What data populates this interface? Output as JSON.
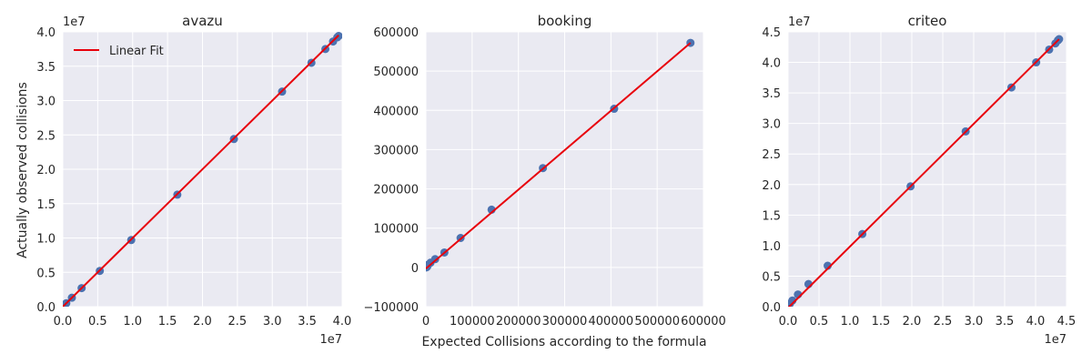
{
  "figure": {
    "xlabel": "Expected Collisions according to the formula",
    "ylabel": "Actually observed collisions",
    "legend_label": "Linear Fit"
  },
  "chart_data": [
    {
      "type": "scatter",
      "title": "avazu",
      "xlim": [
        0,
        40000000
      ],
      "ylim": [
        0,
        40000000
      ],
      "xticks": [
        0,
        5000000,
        10000000,
        15000000,
        20000000,
        25000000,
        30000000,
        35000000,
        40000000
      ],
      "xtick_labels": [
        "0.0",
        "0.5",
        "1.0",
        "1.5",
        "2.0",
        "2.5",
        "3.0",
        "3.5",
        "4.0"
      ],
      "yticks": [
        0,
        5000000,
        10000000,
        15000000,
        20000000,
        25000000,
        30000000,
        35000000,
        40000000
      ],
      "ytick_labels": [
        "0.0",
        "0.5",
        "1.0",
        "1.5",
        "2.0",
        "2.5",
        "3.0",
        "3.5",
        "4.0"
      ],
      "x_offset_label": "1e7",
      "y_offset_label": "1e7",
      "points_x": [
        200000,
        500000,
        1300000,
        2700000,
        5300000,
        9800000,
        16400000,
        24500000,
        31400000,
        35600000,
        37600000,
        38700000,
        39300000,
        39500000
      ],
      "points_y": [
        200000,
        500000,
        1300000,
        2700000,
        5200000,
        9700000,
        16300000,
        24400000,
        31300000,
        35500000,
        37500000,
        38600000,
        39200000,
        39400000
      ],
      "fit_x": [
        0,
        39500000
      ],
      "fit_y": [
        0,
        39500000
      ],
      "legend": "top-left",
      "grid": true
    },
    {
      "type": "scatter",
      "title": "booking",
      "xlim": [
        0,
        600000
      ],
      "ylim": [
        -100000,
        600000
      ],
      "xticks": [
        0,
        100000,
        200000,
        300000,
        400000,
        500000,
        600000
      ],
      "xtick_labels": [
        "0",
        "100000",
        "200000",
        "300000",
        "400000",
        "500000",
        "600000"
      ],
      "yticks": [
        -100000,
        0,
        100000,
        200000,
        300000,
        400000,
        500000,
        600000
      ],
      "ytick_labels": [
        "−100000",
        "0",
        "100000",
        "200000",
        "300000",
        "400000",
        "500000",
        "600000"
      ],
      "points_x": [
        1000,
        3000,
        5000,
        10000,
        20000,
        40000,
        75000,
        142000,
        253000,
        407000,
        572000
      ],
      "points_y": [
        0,
        2000,
        7000,
        12000,
        21000,
        38000,
        75000,
        147000,
        253000,
        404000,
        572000
      ],
      "fit_x": [
        0,
        572000
      ],
      "fit_y": [
        -3000,
        572000
      ],
      "grid": true
    },
    {
      "type": "scatter",
      "title": "criteo",
      "xlim": [
        0,
        45000000
      ],
      "ylim": [
        0,
        45000000
      ],
      "xticks": [
        0,
        5000000,
        10000000,
        15000000,
        20000000,
        25000000,
        30000000,
        35000000,
        40000000,
        45000000
      ],
      "xtick_labels": [
        "0.0",
        "0.5",
        "1.0",
        "1.5",
        "2.0",
        "2.5",
        "3.0",
        "3.5",
        "4.0",
        "4.5"
      ],
      "yticks": [
        0,
        5000000,
        10000000,
        15000000,
        20000000,
        25000000,
        30000000,
        35000000,
        40000000,
        45000000
      ],
      "ytick_labels": [
        "0.0",
        "0.5",
        "1.0",
        "1.5",
        "2.0",
        "2.5",
        "3.0",
        "3.5",
        "4.0",
        "4.5"
      ],
      "x_offset_label": "1e7",
      "y_offset_label": "1e7",
      "points_x": [
        100000,
        300000,
        700000,
        1600000,
        3300000,
        6400000,
        12000000,
        19800000,
        28700000,
        36100000,
        40100000,
        42200000,
        43200000,
        43600000,
        43800000
      ],
      "points_y": [
        200000,
        500000,
        1000000,
        2000000,
        3700000,
        6700000,
        11900000,
        19700000,
        28700000,
        35900000,
        40000000,
        42100000,
        43100000,
        43600000,
        43800000
      ],
      "fit_x": [
        0,
        43800000
      ],
      "fit_y": [
        -200000,
        43800000
      ],
      "grid": true
    }
  ],
  "colors": {
    "panel_bg": "#eaeaf2",
    "grid": "#ffffff",
    "point": "#4c72b0",
    "fit": "#e8000b",
    "text": "#262626"
  }
}
